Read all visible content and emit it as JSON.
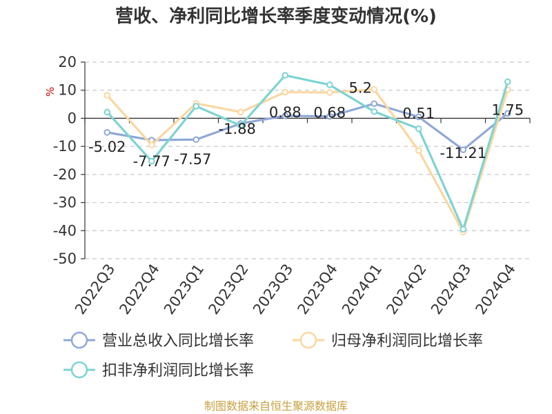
{
  "chart_data": {
    "type": "line",
    "title": "营收、净利同比增长率季度变动情况(%)",
    "ylabel": "%",
    "xlabel": "",
    "ylim": [
      -50,
      20
    ],
    "yticks": [
      20,
      10,
      0,
      -10,
      -20,
      -30,
      -40,
      -50
    ],
    "categories": [
      "2022Q3",
      "2022Q4",
      "2023Q1",
      "2023Q2",
      "2023Q3",
      "2023Q4",
      "2024Q1",
      "2024Q2",
      "2024Q3",
      "2024Q4"
    ],
    "grid": true,
    "legend_position": "bottom",
    "series": [
      {
        "name": "营业总收入同比增长率",
        "color": "#8fa8d8",
        "values": [
          -5.02,
          -7.77,
          -7.57,
          -1.88,
          0.88,
          0.68,
          5.2,
          0.51,
          -11.21,
          1.75
        ],
        "data_labels": [
          "-5.02",
          "-7.77",
          "-7.57",
          "-1.88",
          "0.88",
          "0.68",
          "5.2",
          "0.51",
          "-11.21",
          "1.75"
        ]
      },
      {
        "name": "归母净利润同比增长率",
        "color": "#fad7a0",
        "values": [
          8.2,
          -9.5,
          5.3,
          2.2,
          9.3,
          9.2,
          10.3,
          -11.5,
          -40.5,
          10.2
        ]
      },
      {
        "name": "扣非净利润同比增长率",
        "color": "#7dd3d3",
        "values": [
          2.2,
          -15.3,
          4.3,
          -2.6,
          15.3,
          11.9,
          2.4,
          -3.7,
          -39.5,
          13.0
        ]
      }
    ]
  },
  "source": "制图数据来自恒生聚源数据库"
}
